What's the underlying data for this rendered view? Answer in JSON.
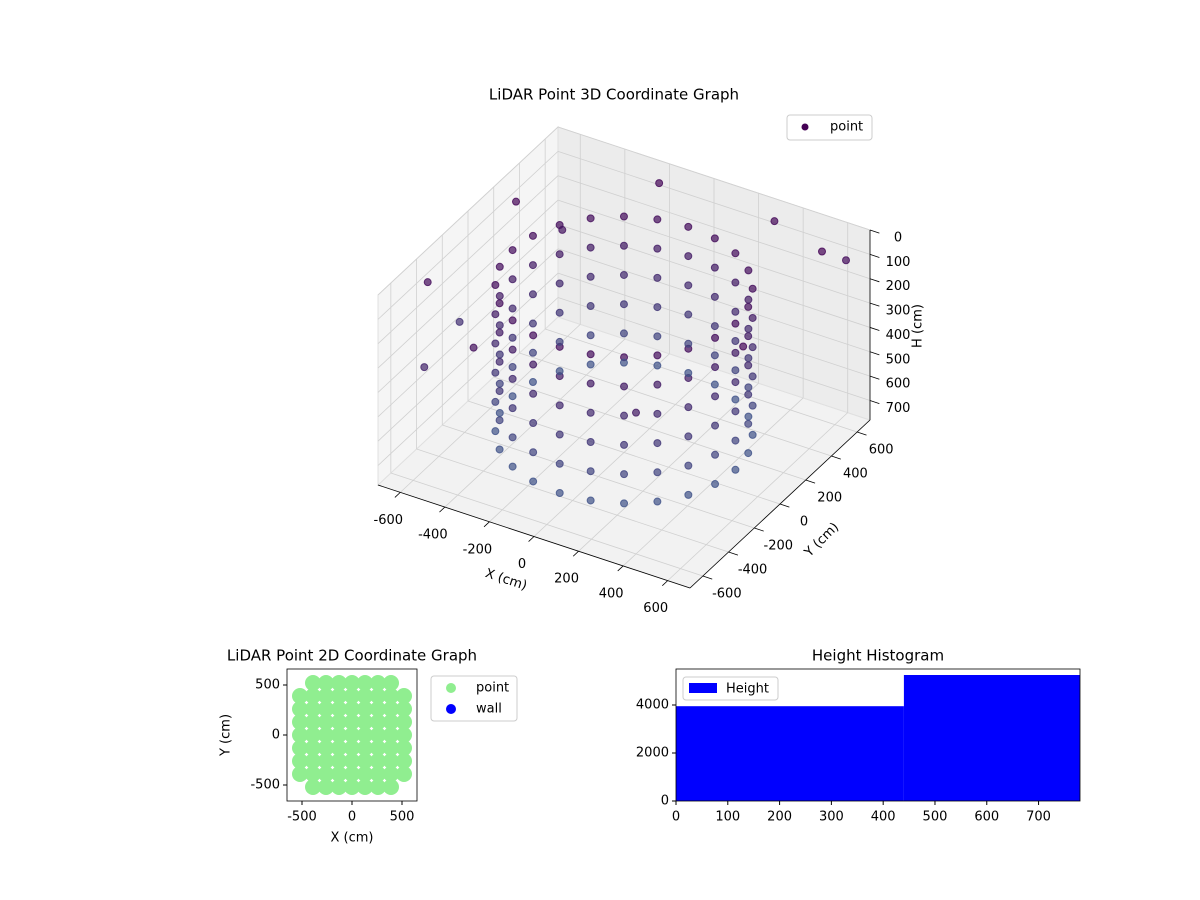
{
  "chart_data": [
    {
      "type": "scatter3d",
      "title": "LiDAR Point 3D Coordinate Graph",
      "xlabel": "X (cm)",
      "ylabel": "Y (cm)",
      "zlabel": "H (cm)",
      "series": [
        {
          "name": "point",
          "color": "#440154",
          "colormap": "viridis",
          "x": [
            500,
            483,
            433,
            354,
            250,
            129,
            0,
            -129,
            -250,
            -354,
            -433,
            -483,
            -500,
            -483,
            -433,
            -354,
            -250,
            -129,
            0,
            129,
            250,
            354,
            433,
            483,
            500,
            483,
            433,
            354,
            250,
            129,
            0,
            -129,
            -250,
            -354,
            -433,
            -483,
            -500,
            -483,
            -433,
            -354,
            -250,
            -129,
            0,
            129,
            250,
            354,
            433,
            483,
            500,
            483,
            433,
            354,
            250,
            129,
            0,
            -129,
            -250,
            -354,
            -433,
            -483,
            -500,
            -483,
            -433,
            -354,
            -250,
            -129,
            0,
            129,
            250,
            354,
            433,
            483,
            500,
            483,
            433,
            354,
            250,
            129,
            0,
            -129,
            -250,
            -354,
            -433,
            -483,
            -500,
            -483,
            -433,
            -354,
            -250,
            -129,
            0,
            129,
            250,
            354,
            433,
            483,
            500,
            483,
            433,
            354,
            250,
            129,
            0,
            -129,
            -250,
            -354,
            -433,
            -483,
            -500,
            -483,
            -433,
            -354,
            -250,
            -129,
            0,
            129,
            250,
            354,
            433,
            483,
            500,
            483,
            433,
            354,
            250,
            129,
            0,
            -129,
            -250,
            -354,
            -433,
            -483,
            -500,
            -483,
            -433,
            -354,
            -250,
            -129,
            0,
            129,
            250,
            354,
            433,
            483,
            -650,
            -600,
            -300,
            650,
            600,
            -550,
            -680,
            300,
            -200,
            650,
            -450,
            400
          ],
          "y": [
            0,
            129,
            250,
            354,
            433,
            483,
            500,
            483,
            433,
            354,
            250,
            129,
            0,
            -129,
            -250,
            -354,
            -433,
            -483,
            -500,
            -483,
            -433,
            -354,
            -250,
            -129,
            0,
            129,
            250,
            354,
            433,
            483,
            500,
            483,
            433,
            354,
            250,
            129,
            0,
            -129,
            -250,
            -354,
            -433,
            -483,
            -500,
            -483,
            -433,
            -354,
            -250,
            -129,
            0,
            129,
            250,
            354,
            433,
            483,
            500,
            483,
            433,
            354,
            250,
            129,
            0,
            -129,
            -250,
            -354,
            -433,
            -483,
            -500,
            -483,
            -433,
            -354,
            -250,
            -129,
            0,
            129,
            250,
            354,
            433,
            483,
            500,
            483,
            433,
            354,
            250,
            129,
            0,
            -129,
            -250,
            -354,
            -433,
            -483,
            -500,
            -483,
            -433,
            -354,
            -250,
            -129,
            0,
            129,
            250,
            354,
            433,
            483,
            500,
            483,
            433,
            354,
            250,
            129,
            0,
            -129,
            -250,
            -354,
            -433,
            -483,
            -500,
            -483,
            -433,
            -354,
            -250,
            -129,
            0,
            129,
            250,
            354,
            433,
            483,
            500,
            483,
            433,
            354,
            250,
            129,
            0,
            -129,
            -250,
            -354,
            -433,
            -483,
            -500,
            -483,
            -433,
            -354,
            -250,
            -129,
            -400,
            200,
            -650,
            -200,
            500,
            -600,
            -100,
            650,
            620,
            600,
            300,
            -600
          ],
          "z": [
            100,
            100,
            100,
            100,
            100,
            100,
            100,
            100,
            100,
            100,
            100,
            100,
            100,
            100,
            100,
            100,
            100,
            100,
            100,
            100,
            100,
            100,
            100,
            100,
            220,
            220,
            220,
            220,
            220,
            220,
            220,
            220,
            220,
            220,
            220,
            220,
            220,
            220,
            220,
            220,
            220,
            220,
            220,
            220,
            220,
            220,
            220,
            220,
            340,
            340,
            340,
            340,
            340,
            340,
            340,
            340,
            340,
            340,
            340,
            340,
            340,
            340,
            340,
            340,
            340,
            340,
            340,
            340,
            340,
            340,
            340,
            340,
            460,
            460,
            460,
            460,
            460,
            460,
            460,
            460,
            460,
            460,
            460,
            460,
            460,
            460,
            460,
            460,
            460,
            460,
            460,
            460,
            460,
            460,
            460,
            460,
            580,
            580,
            580,
            580,
            580,
            580,
            580,
            580,
            580,
            580,
            580,
            580,
            580,
            580,
            580,
            580,
            580,
            580,
            580,
            580,
            580,
            580,
            580,
            580,
            700,
            700,
            700,
            700,
            700,
            700,
            700,
            700,
            700,
            700,
            700,
            700,
            700,
            700,
            700,
            700,
            700,
            700,
            700,
            700,
            700,
            700,
            700,
            700,
            80,
            30,
            120,
            50,
            20,
            300,
            400,
            60,
            40,
            90,
            150,
            200
          ]
        }
      ],
      "xlim": [
        -700,
        700
      ],
      "ylim": [
        -700,
        700
      ],
      "zlim": [
        780,
        0
      ],
      "xticks": [
        -600,
        -400,
        -200,
        0,
        200,
        400,
        600
      ],
      "yticks": [
        -600,
        -400,
        -200,
        0,
        200,
        400,
        600
      ],
      "zticks": [
        0,
        100,
        200,
        300,
        400,
        500,
        600,
        700
      ],
      "grid": true,
      "legend": "upper right"
    },
    {
      "type": "scatter",
      "title": "LiDAR Point 2D Coordinate Graph",
      "xlabel": "X (cm)",
      "ylabel": "Y (cm)",
      "series": [
        {
          "name": "point",
          "color": "#90ee90",
          "x": [
            -390,
            -260,
            -130,
            0,
            130,
            260,
            390,
            -520,
            -390,
            -260,
            -130,
            0,
            130,
            260,
            390,
            520,
            -520,
            -390,
            -260,
            -130,
            0,
            130,
            260,
            390,
            520,
            -520,
            -390,
            -260,
            -130,
            0,
            130,
            260,
            390,
            520,
            -520,
            -390,
            -260,
            -130,
            0,
            130,
            260,
            390,
            520,
            -520,
            -390,
            -260,
            -130,
            0,
            130,
            260,
            390,
            520,
            -520,
            -390,
            -260,
            -130,
            0,
            130,
            260,
            390,
            520,
            -520,
            -390,
            -260,
            -130,
            0,
            130,
            260,
            390,
            520,
            -390,
            -260,
            -130,
            0,
            130,
            260,
            390
          ],
          "y": [
            -520,
            -520,
            -520,
            -520,
            -520,
            -520,
            -520,
            -390,
            -390,
            -390,
            -390,
            -390,
            -390,
            -390,
            -390,
            -390,
            -260,
            -260,
            -260,
            -260,
            -260,
            -260,
            -260,
            -260,
            -260,
            -130,
            -130,
            -130,
            -130,
            -130,
            -130,
            -130,
            -130,
            -130,
            0,
            0,
            0,
            0,
            0,
            0,
            0,
            0,
            0,
            130,
            130,
            130,
            130,
            130,
            130,
            130,
            130,
            130,
            260,
            260,
            260,
            260,
            260,
            260,
            260,
            260,
            260,
            390,
            390,
            390,
            390,
            390,
            390,
            390,
            390,
            390,
            520,
            520,
            520,
            520,
            520,
            520,
            520
          ]
        },
        {
          "name": "wall",
          "color": "#0000ff",
          "x": [],
          "y": []
        }
      ],
      "xlim": [
        -650,
        650
      ],
      "ylim": [
        -660,
        660
      ],
      "xticks": [
        -500,
        0,
        500
      ],
      "yticks": [
        -500,
        0,
        500
      ],
      "legend": "outside right"
    },
    {
      "type": "histogram",
      "title": "Height Histogram",
      "bins": [
        0,
        440,
        780
      ],
      "series": [
        {
          "name": "Height",
          "color": "#0000ff",
          "values": [
            3950,
            5250
          ]
        }
      ],
      "xlim": [
        0,
        780
      ],
      "ylim": [
        0,
        5500
      ],
      "xticks": [
        0,
        100,
        200,
        300,
        400,
        500,
        600,
        700
      ],
      "yticks": [
        0,
        2000,
        4000
      ],
      "legend": "upper left"
    }
  ]
}
